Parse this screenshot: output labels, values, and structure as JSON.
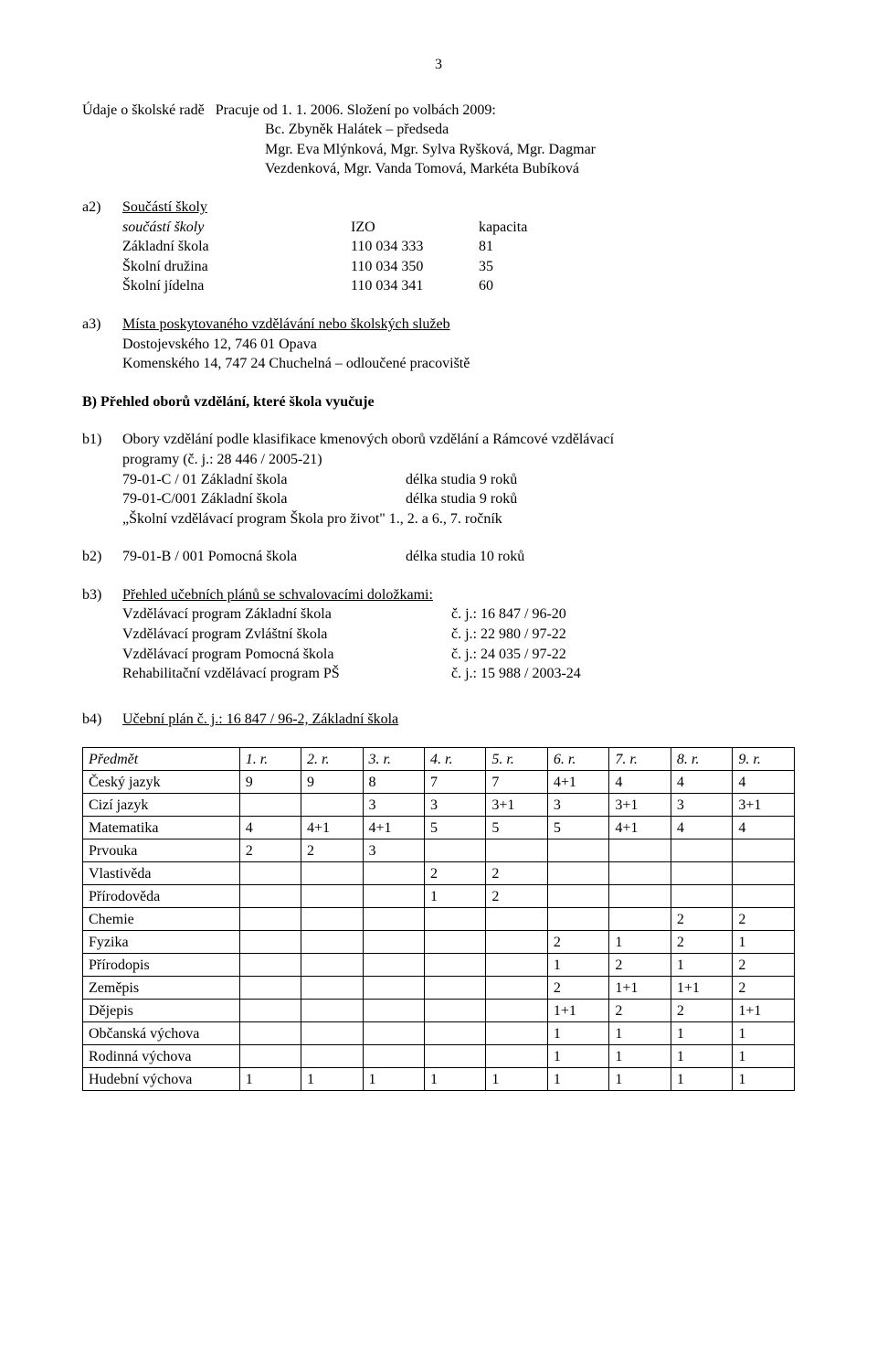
{
  "page_number": "3",
  "intro": {
    "line1a": "Údaje o školské radě",
    "line1b": "Pracuje od 1. 1. 2006. Složení po volbách 2009:",
    "line2": "Bc. Zbyněk Halátek – předseda",
    "line3": "Mgr. Eva Mlýnková, Mgr. Sylva Ryšková, Mgr. Dagmar",
    "line4": "Vezdenková, Mgr. Vanda Tomová, Markéta Bubíková"
  },
  "a2": {
    "label": "a2)",
    "title": "Součástí školy",
    "head": {
      "c1": "součástí školy",
      "c2": "IZO",
      "c3": "kapacita"
    },
    "rows": [
      {
        "c1": "Základní škola",
        "c2": "110 034 333",
        "c3": "81"
      },
      {
        "c1": "Školní družina",
        "c2": "110 034 350",
        "c3": "35"
      },
      {
        "c1": "Školní jídelna",
        "c2": "110 034 341",
        "c3": "60"
      }
    ]
  },
  "a3": {
    "label": "a3)",
    "title": "Místa poskytovaného vzdělávání nebo školských služeb",
    "l1": "Dostojevského 12, 746 01 Opava",
    "l2": "Komenského 14, 747 24 Chuchelná – odloučené pracoviště"
  },
  "bhead": "B) Přehled oborů vzdělání, které škola vyučuje",
  "b1": {
    "label": "b1)",
    "p1": "Obory vzdělání podle klasifikace kmenových oborů vzdělání a Rámcové vzdělávací",
    "p2": "programy (č. j.: 28 446 / 2005-21)",
    "rows": [
      {
        "c1": "79-01-C / 01 Základní škola",
        "c2": "délka studia 9 roků"
      },
      {
        "c1": "79-01-C/001 Základní škola",
        "c2": "délka studia 9 roků"
      }
    ],
    "p3": "„Školní vzdělávací program Škola pro život\" 1., 2. a 6., 7. ročník"
  },
  "b2": {
    "label": "b2)",
    "c1": "79-01-B / 001 Pomocná škola",
    "c2": "délka studia 10 roků"
  },
  "b3": {
    "label": "b3)",
    "title": "Přehled učebních plánů se schvalovacími doložkami:",
    "rows": [
      {
        "c1": "Vzdělávací program Základní škola",
        "c2": "č. j.:  16 847 / 96-20"
      },
      {
        "c1": "Vzdělávací program Zvláštní škola",
        "c2": "č. j.:  22 980 / 97-22"
      },
      {
        "c1": "Vzdělávací program Pomocná škola",
        "c2": "č. j.:  24 035 / 97-22"
      },
      {
        "c1": "Rehabilitační vzdělávací program PŠ",
        "c2": "č. j.:  15 988 / 2003-24"
      }
    ]
  },
  "b4": {
    "label": "b4)",
    "title": "Učební plán č. j.: 16 847 / 96-2, Základní škola",
    "headers": [
      "Předmět",
      "1. r.",
      "2. r.",
      "3. r.",
      "4. r.",
      "5. r.",
      "6. r.",
      "7. r.",
      "8. r.",
      "9. r."
    ],
    "rows": [
      [
        "Český jazyk",
        "9",
        "9",
        "8",
        "7",
        "7",
        "4+1",
        "4",
        "4",
        "4"
      ],
      [
        "Cizí jazyk",
        "",
        "",
        "3",
        "3",
        "3+1",
        "3",
        "3+1",
        "3",
        "3+1"
      ],
      [
        "Matematika",
        "4",
        "4+1",
        "4+1",
        "5",
        "5",
        "5",
        "4+1",
        "4",
        "4"
      ],
      [
        "Prvouka",
        "2",
        "2",
        "3",
        "",
        "",
        "",
        "",
        "",
        ""
      ],
      [
        "Vlastivěda",
        "",
        "",
        "",
        "2",
        "2",
        "",
        "",
        "",
        ""
      ],
      [
        "Přírodověda",
        "",
        "",
        "",
        "1",
        "2",
        "",
        "",
        "",
        ""
      ],
      [
        "Chemie",
        "",
        "",
        "",
        "",
        "",
        "",
        "",
        "2",
        "2"
      ],
      [
        "Fyzika",
        "",
        "",
        "",
        "",
        "",
        "2",
        "1",
        "2",
        "1"
      ],
      [
        "Přírodopis",
        "",
        "",
        "",
        "",
        "",
        "1",
        "2",
        "1",
        "2"
      ],
      [
        "Zeměpis",
        "",
        "",
        "",
        "",
        "",
        "2",
        "1+1",
        "1+1",
        "2"
      ],
      [
        "Dějepis",
        "",
        "",
        "",
        "",
        "",
        "1+1",
        "2",
        "2",
        "1+1"
      ],
      [
        "Občanská výchova",
        "",
        "",
        "",
        "",
        "",
        "1",
        "1",
        "1",
        "1"
      ],
      [
        "Rodinná výchova",
        "",
        "",
        "",
        "",
        "",
        "1",
        "1",
        "1",
        "1"
      ],
      [
        "Hudební výchova",
        "1",
        "1",
        "1",
        "1",
        "1",
        "1",
        "1",
        "1",
        "1"
      ]
    ]
  }
}
